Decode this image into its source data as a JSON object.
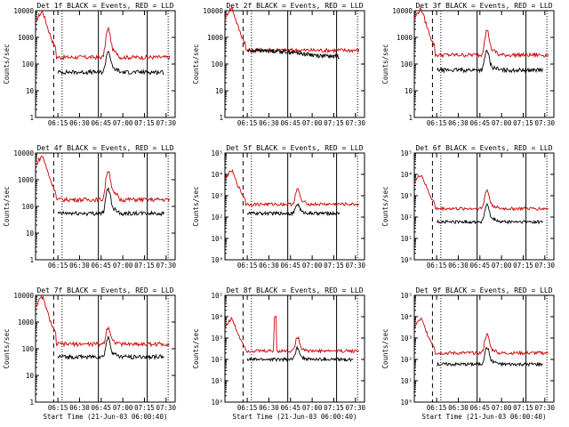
{
  "figure": {
    "background": "#ffffff",
    "axis_color": "#000000"
  },
  "chart_data": [
    {
      "type": "line",
      "title": "Det 1f BLACK = Events, RED = LLD",
      "panel_row": 0,
      "panel_col": 0,
      "ylim": [
        1,
        10000
      ],
      "yscale": "log",
      "y_tick_labels": [
        "1",
        "10",
        "100",
        "1000",
        "10000"
      ],
      "ylabel": "Counts/sec",
      "xlabel": "",
      "x_tick_labels": [
        "06:15",
        "06:30",
        "06:45",
        "07:00",
        "07:15",
        "07:30"
      ],
      "series": [
        {
          "name": "Events",
          "color": "#000000",
          "start": 0.16,
          "end": 0.92,
          "level": 50,
          "flare_peak": 250,
          "initial_peak": 0
        },
        {
          "name": "LLD",
          "color": "#cc0000",
          "start": 0.0,
          "end": 0.96,
          "level": 180,
          "flare_peak": 1800,
          "initial_peak": 9500
        }
      ],
      "markers": {
        "dashed": 0.13,
        "dotted": [
          0.19,
          0.95
        ],
        "solid": [
          0.45,
          0.8
        ]
      }
    },
    {
      "type": "line",
      "title": "Det 2f BLACK = Events, RED = LLD",
      "panel_row": 0,
      "panel_col": 1,
      "ylim": [
        1,
        10000
      ],
      "yscale": "log",
      "y_tick_labels": [
        "1",
        "10",
        "100",
        "1000",
        "10000"
      ],
      "ylabel": "Counts/sec",
      "xlabel": "",
      "x_tick_labels": [
        "06:15",
        "06:30",
        "06:45",
        "07:00",
        "07:15",
        "07:30"
      ],
      "series": [
        {
          "name": "Events",
          "color": "#000000",
          "start": 0.16,
          "end": 0.82,
          "level": 260,
          "flare_peak": 0,
          "initial_peak": 0
        },
        {
          "name": "LLD",
          "color": "#cc0000",
          "start": 0.0,
          "end": 0.96,
          "level": 330,
          "flare_peak": 0,
          "initial_peak": 13000
        }
      ],
      "markers": {
        "dashed": 0.13,
        "dotted": [
          0.19,
          0.95
        ],
        "solid": [
          0.45,
          0.8
        ]
      }
    },
    {
      "type": "line",
      "title": "Det 3f BLACK = Events, RED = LLD",
      "panel_row": 0,
      "panel_col": 2,
      "ylim": [
        1,
        10000
      ],
      "yscale": "log",
      "y_tick_labels": [
        "1",
        "10",
        "100",
        "1000",
        "10000"
      ],
      "ylabel": "Counts/sec",
      "xlabel": "",
      "x_tick_labels": [
        "06:15",
        "06:30",
        "06:45",
        "07:00",
        "07:15",
        "07:30"
      ],
      "series": [
        {
          "name": "Events",
          "color": "#000000",
          "start": 0.16,
          "end": 0.92,
          "level": 60,
          "flare_peak": 250,
          "initial_peak": 0
        },
        {
          "name": "LLD",
          "color": "#cc0000",
          "start": 0.0,
          "end": 0.96,
          "level": 220,
          "flare_peak": 1600,
          "initial_peak": 12000
        }
      ],
      "markers": {
        "dashed": 0.13,
        "dotted": [
          0.19,
          0.95
        ],
        "solid": [
          0.45,
          0.8
        ]
      }
    },
    {
      "type": "line",
      "title": "Det 4f BLACK = Events, RED = LLD",
      "panel_row": 1,
      "panel_col": 0,
      "ylim": [
        1,
        10000
      ],
      "yscale": "log",
      "y_tick_labels": [
        "1",
        "10",
        "100",
        "1000",
        "10000"
      ],
      "ylabel": "Counts/sec",
      "xlabel": "",
      "x_tick_labels": [
        "06:15",
        "06:30",
        "06:45",
        "07:00",
        "07:15",
        "07:30"
      ],
      "series": [
        {
          "name": "Events",
          "color": "#000000",
          "start": 0.16,
          "end": 0.92,
          "level": 55,
          "flare_peak": 400,
          "initial_peak": 0
        },
        {
          "name": "LLD",
          "color": "#cc0000",
          "start": 0.0,
          "end": 0.96,
          "level": 180,
          "flare_peak": 2000,
          "initial_peak": 8000
        }
      ],
      "markers": {
        "dashed": 0.13,
        "dotted": [
          0.19,
          0.95
        ],
        "solid": [
          0.45,
          0.8
        ]
      }
    },
    {
      "type": "line",
      "title": "Det 5f BLACK = Events, RED = LLD",
      "panel_row": 1,
      "panel_col": 1,
      "ylim": [
        1,
        100000
      ],
      "yscale": "log",
      "y_tick_labels": [
        "10⁰",
        "10¹",
        "10²",
        "10³",
        "10⁴",
        "10⁵"
      ],
      "ylabel": "Counts/sec",
      "xlabel": "",
      "x_tick_labels": [
        "06:15",
        "06:30",
        "06:45",
        "07:00",
        "07:15",
        "07:30"
      ],
      "series": [
        {
          "name": "Events",
          "color": "#000000",
          "start": 0.16,
          "end": 0.82,
          "level": 150,
          "flare_peak": 250,
          "initial_peak": 0
        },
        {
          "name": "LLD",
          "color": "#cc0000",
          "start": 0.0,
          "end": 0.96,
          "level": 400,
          "flare_peak": 1500,
          "initial_peak": 15000
        }
      ],
      "markers": {
        "dashed": 0.13,
        "dotted": [
          0.19,
          0.95
        ],
        "solid": [
          0.45,
          0.8
        ]
      }
    },
    {
      "type": "line",
      "title": "Det 6f BLACK = Events, RED = LLD",
      "panel_row": 1,
      "panel_col": 2,
      "ylim": [
        1,
        100000
      ],
      "yscale": "log",
      "y_tick_labels": [
        "10⁰",
        "10¹",
        "10²",
        "10³",
        "10⁴",
        "10⁵"
      ],
      "ylabel": "Counts/sec",
      "xlabel": "",
      "x_tick_labels": [
        "06:15",
        "06:30",
        "06:45",
        "07:00",
        "07:15",
        "07:30"
      ],
      "series": [
        {
          "name": "Events",
          "color": "#000000",
          "start": 0.16,
          "end": 0.92,
          "level": 60,
          "flare_peak": 300,
          "initial_peak": 0
        },
        {
          "name": "LLD",
          "color": "#cc0000",
          "start": 0.0,
          "end": 0.96,
          "level": 250,
          "flare_peak": 1500,
          "initial_peak": 10000
        }
      ],
      "markers": {
        "dashed": 0.13,
        "dotted": [
          0.19,
          0.95
        ],
        "solid": [
          0.45,
          0.8
        ]
      }
    },
    {
      "type": "line",
      "title": "Det 7f BLACK = Events, RED = LLD",
      "panel_row": 2,
      "panel_col": 0,
      "ylim": [
        1,
        10000
      ],
      "yscale": "log",
      "y_tick_labels": [
        "1",
        "10",
        "100",
        "1000",
        "10000"
      ],
      "ylabel": "Counts/sec",
      "xlabel": "Start Time (21-Jun-03 06:00:40)",
      "x_tick_labels": [
        "06:15",
        "06:30",
        "06:45",
        "07:00",
        "07:15",
        "07:30"
      ],
      "series": [
        {
          "name": "Events",
          "color": "#000000",
          "start": 0.16,
          "end": 0.92,
          "level": 50,
          "flare_peak": 200,
          "initial_peak": 0
        },
        {
          "name": "LLD",
          "color": "#cc0000",
          "start": 0.0,
          "end": 0.96,
          "level": 150,
          "flare_peak": 500,
          "initial_peak": 9000
        }
      ],
      "markers": {
        "dashed": 0.13,
        "dotted": [
          0.19,
          0.95
        ],
        "solid": [
          0.45,
          0.8
        ]
      }
    },
    {
      "type": "line",
      "title": "Det 8f BLACK = Events, RED = LLD",
      "panel_row": 2,
      "panel_col": 1,
      "ylim": [
        1,
        100000
      ],
      "yscale": "log",
      "y_tick_labels": [
        "10⁰",
        "10¹",
        "10²",
        "10³",
        "10⁴",
        "10⁵"
      ],
      "ylabel": "Counts/sec",
      "xlabel": "Start Time (21-Jun-03 06:00:40)",
      "x_tick_labels": [
        "06:15",
        "06:30",
        "06:45",
        "07:00",
        "07:15",
        "07:30"
      ],
      "series": [
        {
          "name": "Events",
          "color": "#000000",
          "start": 0.16,
          "end": 0.92,
          "level": 100,
          "flare_peak": 250,
          "initial_peak": 0
        },
        {
          "name": "LLD",
          "color": "#cc0000",
          "start": 0.0,
          "end": 0.96,
          "level": 250,
          "flare_peak": 800,
          "initial_peak": 8000,
          "spike_at": 0.36,
          "spike_peak": 10000
        }
      ],
      "markers": {
        "dashed": 0.13,
        "dotted": [
          0.19,
          0.95
        ],
        "solid": [
          0.45,
          0.8
        ]
      }
    },
    {
      "type": "line",
      "title": "Det 9f BLACK = Events, RED = LLD",
      "panel_row": 2,
      "panel_col": 2,
      "ylim": [
        1,
        100000
      ],
      "yscale": "log",
      "y_tick_labels": [
        "10⁰",
        "10¹",
        "10²",
        "10³",
        "10⁴",
        "10⁵"
      ],
      "ylabel": "Counts/sec",
      "xlabel": "Start Time (21-Jun-03 06:00:40)",
      "x_tick_labels": [
        "06:15",
        "06:30",
        "06:45",
        "07:00",
        "07:15",
        "07:30"
      ],
      "series": [
        {
          "name": "Events",
          "color": "#000000",
          "start": 0.16,
          "end": 0.92,
          "level": 60,
          "flare_peak": 300,
          "initial_peak": 0
        },
        {
          "name": "LLD",
          "color": "#cc0000",
          "start": 0.0,
          "end": 0.96,
          "level": 200,
          "flare_peak": 1200,
          "initial_peak": 8000
        }
      ],
      "markers": {
        "dashed": 0.13,
        "dotted": [
          0.19,
          0.95
        ],
        "solid": [
          0.45,
          0.8
        ]
      }
    }
  ]
}
